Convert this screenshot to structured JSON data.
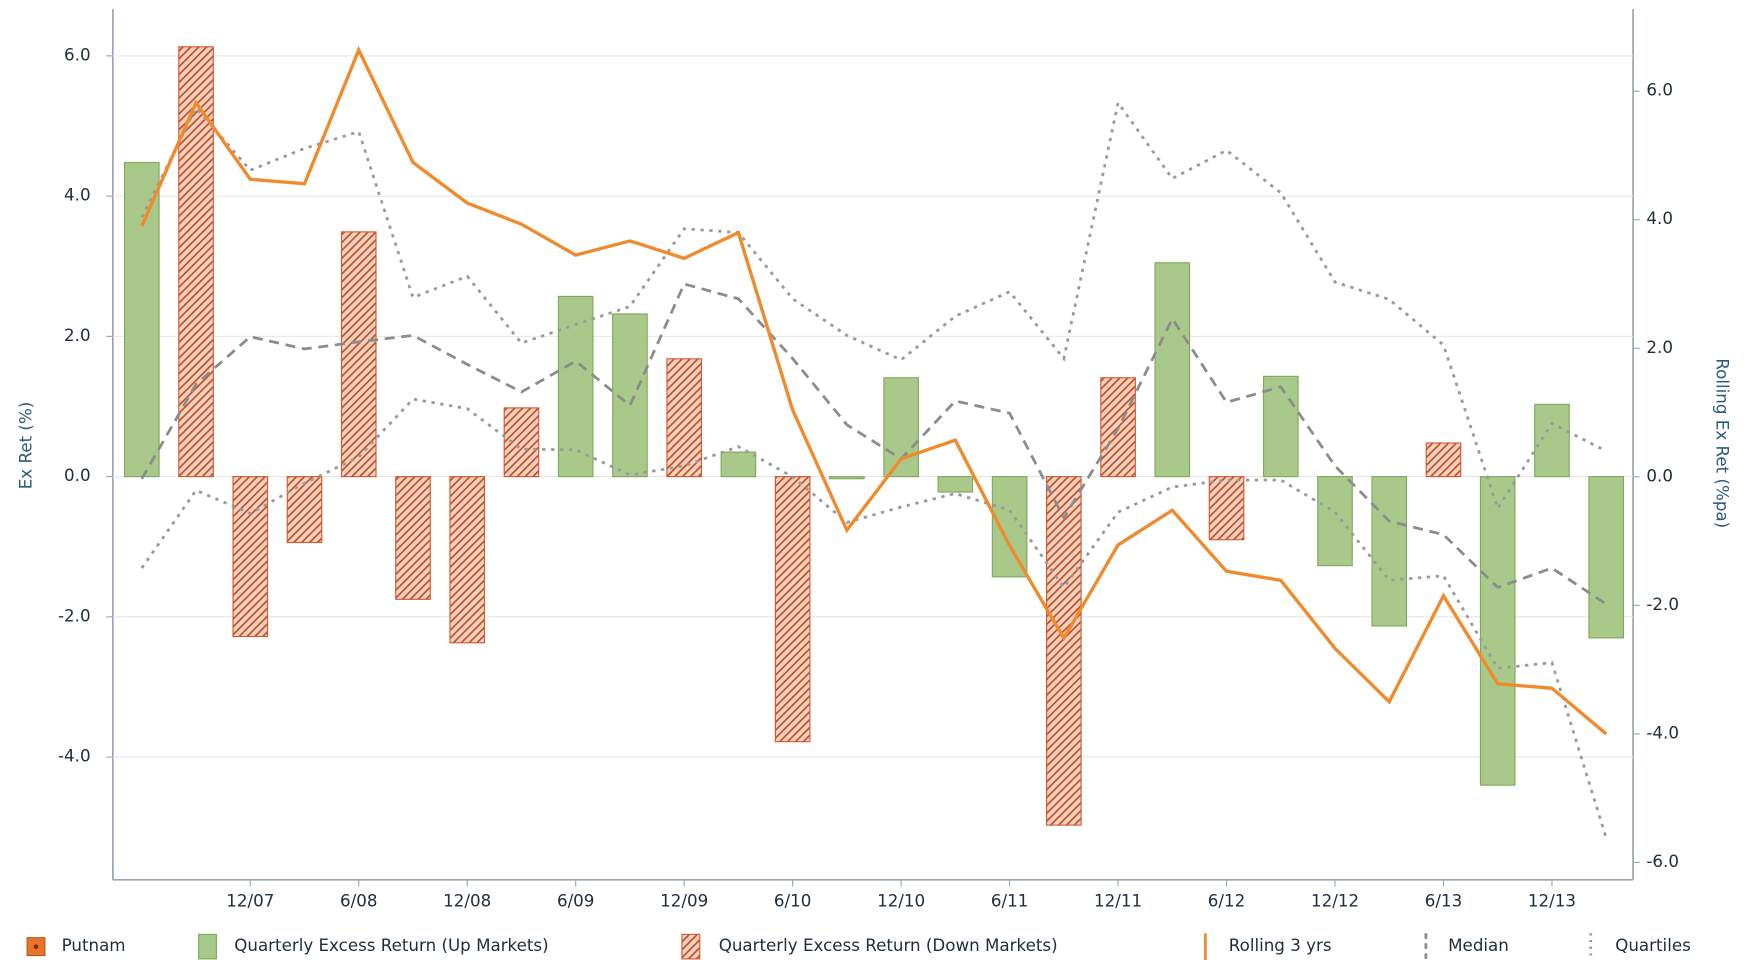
{
  "chart_data": {
    "type": "bar",
    "ylabel": "Ex Ret (%)",
    "y2label": "Rolling Ex Ret (%pa)",
    "categories": [
      null,
      null,
      "12/07",
      null,
      "6/08",
      null,
      "12/08",
      null,
      "6/09",
      null,
      "12/09",
      null,
      "6/10",
      null,
      "12/10",
      null,
      "6/11",
      null,
      "12/11",
      null,
      "6/12",
      null,
      "12/12",
      null,
      "6/13",
      null,
      "12/13",
      null
    ],
    "ylim": [
      -5.75,
      6.67
    ],
    "yticks": [
      {
        "value": -4,
        "label": "-4.0"
      },
      {
        "value": -2,
        "label": "-2.0"
      },
      {
        "value": 0,
        "label": "0.0"
      },
      {
        "value": 2,
        "label": "2.0"
      },
      {
        "value": 4,
        "label": "4.0"
      },
      {
        "value": 6,
        "label": "6.0"
      }
    ],
    "y2lim": [
      -6.27,
      7.28
    ],
    "y2ticks": [
      {
        "value": -6,
        "label": "-6.0"
      },
      {
        "value": -4,
        "label": "-4.0"
      },
      {
        "value": -2,
        "label": "-2.0"
      },
      {
        "value": 0,
        "label": "0.0"
      },
      {
        "value": 2,
        "label": "2.0"
      },
      {
        "value": 4,
        "label": "4.0"
      },
      {
        "value": 6,
        "label": "6.0"
      }
    ],
    "grid": true,
    "legend": "bottom",
    "fund": {
      "name": "Putnam",
      "color": "#e8742a"
    },
    "series": [
      {
        "name": "Quarterly Excess Return (Up Markets)",
        "kind": "bar",
        "color": "#a9c98a",
        "values": [
          4.48,
          null,
          null,
          null,
          null,
          null,
          null,
          null,
          2.57,
          2.32,
          null,
          0.35,
          null,
          -0.03,
          1.41,
          -0.22,
          -1.43,
          null,
          null,
          3.05,
          null,
          1.43,
          -1.27,
          -2.13,
          null,
          -4.4,
          1.03,
          -2.3
        ]
      },
      {
        "name": "Quarterly Excess Return (Down Markets)",
        "kind": "hatched-bar",
        "color": "#d2572e",
        "values": [
          null,
          6.13,
          -2.28,
          -0.94,
          3.49,
          -1.75,
          -2.37,
          0.98,
          null,
          null,
          1.68,
          null,
          -3.78,
          null,
          null,
          null,
          null,
          -4.97,
          1.41,
          null,
          -0.9,
          null,
          null,
          null,
          0.48,
          null,
          null,
          null
        ]
      },
      {
        "name": "Rolling 3 yrs",
        "kind": "line",
        "axis": "y2",
        "color": "#f08a2c",
        "values": [
          3.9,
          5.82,
          4.63,
          4.56,
          6.64,
          4.89,
          4.26,
          3.93,
          3.45,
          3.67,
          3.4,
          3.8,
          1.04,
          -0.83,
          0.28,
          0.57,
          -1.07,
          -2.51,
          -1.06,
          -0.52,
          -1.47,
          -1.61,
          -2.67,
          -3.5,
          -1.85,
          -3.22,
          -3.29,
          -4.0
        ]
      },
      {
        "name": "Median",
        "kind": "dashed",
        "axis": "y2",
        "color": "#8c8c8c",
        "values": [
          -0.03,
          1.44,
          2.18,
          1.99,
          2.1,
          2.2,
          1.75,
          1.32,
          1.8,
          1.11,
          3.0,
          2.77,
          1.84,
          0.81,
          0.28,
          1.18,
          0.99,
          -0.64,
          0.75,
          2.46,
          1.16,
          1.4,
          0.17,
          -0.69,
          -0.9,
          -1.72,
          -1.42,
          -1.98
        ]
      },
      {
        "name": "Quartiles",
        "kind": "dotted",
        "axis": "y2",
        "color": "#9a9a9a",
        "values": [
          4.04,
          5.74,
          4.77,
          5.11,
          5.37,
          2.79,
          3.12,
          2.08,
          2.37,
          2.65,
          3.86,
          3.8,
          2.77,
          2.2,
          1.82,
          2.5,
          2.88,
          1.84,
          5.82,
          4.64,
          5.08,
          4.42,
          3.03,
          2.76,
          2.05,
          -0.49,
          0.83,
          0.4
        ],
        "lower": [
          -1.42,
          -0.21,
          -0.57,
          -0.1,
          0.31,
          1.21,
          1.06,
          0.43,
          0.42,
          0.03,
          0.17,
          0.47,
          0,
          -0.71,
          -0.47,
          -0.26,
          -0.52,
          -1.72,
          -0.55,
          -0.16,
          -0.05,
          -0.05,
          -0.55,
          -1.61,
          -1.54,
          -2.98,
          -2.89,
          -5.62
        ]
      }
    ]
  }
}
